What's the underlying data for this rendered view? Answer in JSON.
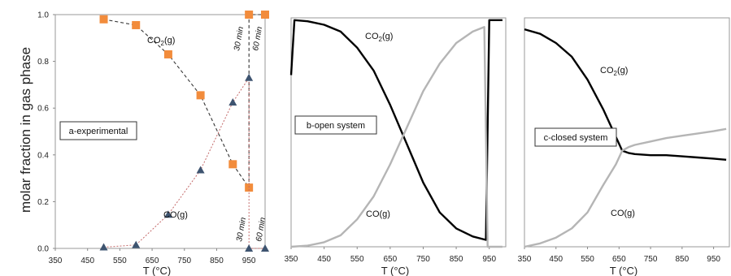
{
  "y_axis_label": "molar fraction in gas phase",
  "chart_data": [
    {
      "type": "line",
      "panel_label": "a-experimental",
      "xlabel": "T (°C)",
      "xlim": [
        350,
        1000
      ],
      "ylim": [
        0,
        1
      ],
      "x_ticks": [
        "350",
        "450",
        "550",
        "650",
        "750",
        "850",
        "950"
      ],
      "y_ticks": [
        "0.0",
        "0.2",
        "0.4",
        "0.6",
        "0.8",
        "1.0"
      ],
      "series": [
        {
          "name": "CO2(g)",
          "label_main": "CO",
          "label_sub": "2",
          "label_tail": "(g)",
          "marker": "square",
          "color": "#f28c3c",
          "x": [
            500,
            600,
            700,
            800,
            900,
            950,
            950,
            1000
          ],
          "y": [
            0.98,
            0.955,
            0.83,
            0.655,
            0.36,
            0.26,
            1.0,
            1.0
          ]
        },
        {
          "name": "CO(g)",
          "label_main": "CO(g)",
          "marker": "triangle",
          "color": "#3e5470",
          "x": [
            500,
            600,
            700,
            800,
            900,
            950,
            950,
            1000
          ],
          "y": [
            0.005,
            0.015,
            0.145,
            0.335,
            0.625,
            0.73,
            0.0,
            0.0
          ]
        }
      ],
      "annotations": [
        "30 min",
        "60 min",
        "30 min",
        "60 min"
      ]
    },
    {
      "type": "line",
      "panel_label": "b-open system",
      "xlabel": "T (°C)",
      "xlim": [
        350,
        1000
      ],
      "ylim": [
        0,
        1
      ],
      "x_ticks": [
        "350",
        "450",
        "550",
        "650",
        "750",
        "850",
        "950"
      ],
      "series": [
        {
          "name": "CO2(g)",
          "label_main": "CO",
          "label_sub": "2",
          "label_tail": "(g)",
          "color": "#000000",
          "x": [
            350,
            360,
            400,
            450,
            500,
            550,
            600,
            650,
            700,
            750,
            800,
            850,
            900,
            940,
            950,
            960,
            990
          ],
          "y": [
            0.75,
            0.99,
            0.985,
            0.97,
            0.94,
            0.87,
            0.77,
            0.62,
            0.45,
            0.28,
            0.15,
            0.08,
            0.045,
            0.03,
            0.99,
            0.99,
            0.99
          ]
        },
        {
          "name": "CO(g)",
          "label_main": "CO(g)",
          "color": "#b5b5b5",
          "x": [
            350,
            400,
            450,
            500,
            550,
            600,
            650,
            700,
            750,
            800,
            850,
            900,
            935,
            945,
            960,
            990
          ],
          "y": [
            0.0,
            0.005,
            0.02,
            0.05,
            0.12,
            0.22,
            0.36,
            0.52,
            0.68,
            0.8,
            0.89,
            0.94,
            0.96,
            0.0,
            0.0,
            0.0
          ]
        }
      ]
    },
    {
      "type": "line",
      "panel_label": "c-closed system",
      "xlabel": "T (°C)",
      "xlim": [
        350,
        1000
      ],
      "ylim": [
        0,
        1
      ],
      "x_ticks": [
        "350",
        "450",
        "550",
        "650",
        "750",
        "850",
        "950"
      ],
      "series": [
        {
          "name": "CO2(g)",
          "label_main": "CO",
          "label_sub": "2",
          "label_tail": "(g)",
          "color": "#000000",
          "x": [
            350,
            400,
            450,
            500,
            550,
            600,
            640,
            660,
            680,
            700,
            750,
            800,
            850,
            900,
            950,
            990
          ],
          "y": [
            0.95,
            0.93,
            0.89,
            0.83,
            0.73,
            0.6,
            0.48,
            0.42,
            0.41,
            0.405,
            0.4,
            0.4,
            0.395,
            0.39,
            0.385,
            0.38
          ]
        },
        {
          "name": "CO(g)",
          "label_main": "CO(g)",
          "color": "#b5b5b5",
          "x": [
            350,
            400,
            450,
            500,
            550,
            600,
            640,
            660,
            680,
            700,
            750,
            800,
            850,
            900,
            950,
            990
          ],
          "y": [
            0.0,
            0.015,
            0.04,
            0.08,
            0.15,
            0.27,
            0.36,
            0.42,
            0.435,
            0.445,
            0.46,
            0.475,
            0.485,
            0.495,
            0.505,
            0.515
          ]
        }
      ]
    }
  ]
}
